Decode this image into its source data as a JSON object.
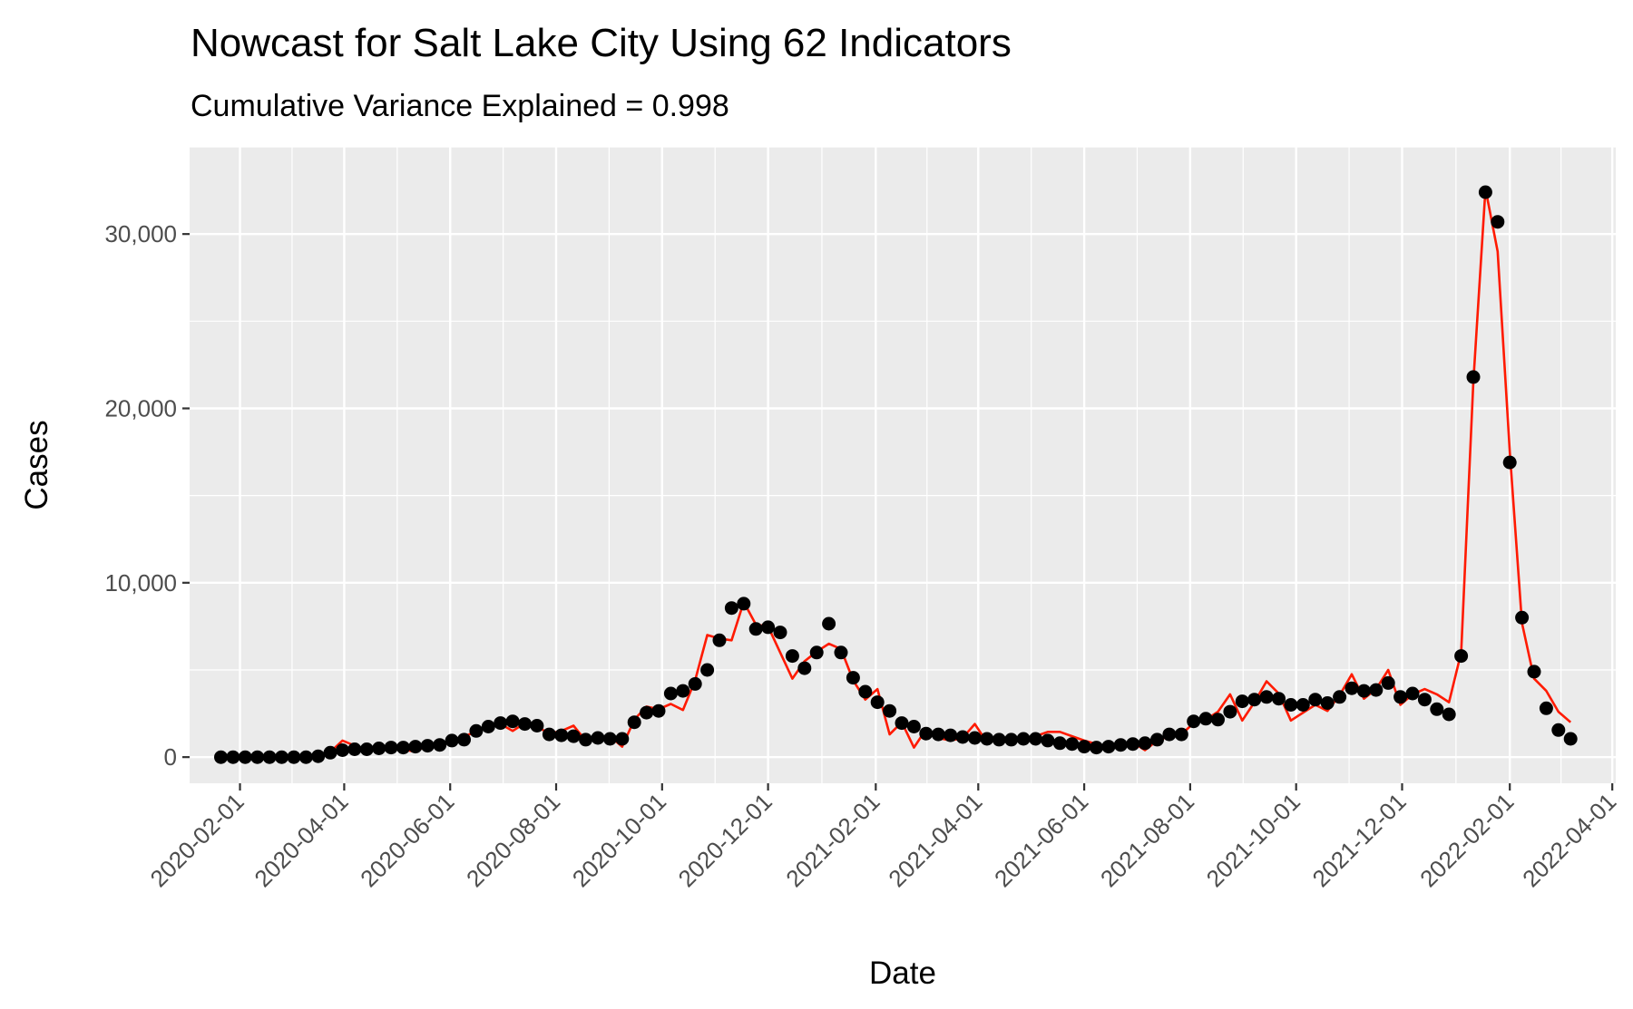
{
  "chart_data": {
    "type": "line",
    "title": "Nowcast for Salt Lake City Using 62 Indicators",
    "subtitle": "Cumulative Variance Explained = 0.998",
    "xlabel": "Date",
    "ylabel": "Cases",
    "ylim": [
      -1500,
      35000
    ],
    "xlim": [
      "2020-01-03",
      "2022-04-03"
    ],
    "x_tick_labels": [
      "2020-02-01",
      "2020-04-01",
      "2020-06-01",
      "2020-08-01",
      "2020-10-01",
      "2020-12-01",
      "2021-02-01",
      "2021-04-01",
      "2021-06-01",
      "2021-08-01",
      "2021-10-01",
      "2021-12-01",
      "2022-02-01",
      "2022-04-01"
    ],
    "y_ticks": [
      0,
      10000,
      20000,
      30000
    ],
    "y_tick_labels": [
      "0",
      "10,000",
      "20,000",
      "30,000"
    ],
    "grid": true,
    "legend": "none",
    "colors": {
      "panel": "#ebebeb",
      "grid": "#ffffff",
      "line": "#ff1a00",
      "points": "#000000",
      "text": "#000000",
      "ticks": "#4d4d4d"
    },
    "series": [
      {
        "role": "observed",
        "mark": "point",
        "points": [
          [
            "2020-01-21",
            0
          ],
          [
            "2020-01-28",
            0
          ],
          [
            "2020-02-04",
            0
          ],
          [
            "2020-02-11",
            0
          ],
          [
            "2020-02-18",
            0
          ],
          [
            "2020-02-25",
            0
          ],
          [
            "2020-03-03",
            0
          ],
          [
            "2020-03-10",
            0
          ],
          [
            "2020-03-17",
            50
          ],
          [
            "2020-03-24",
            250
          ],
          [
            "2020-03-31",
            400
          ],
          [
            "2020-04-07",
            450
          ],
          [
            "2020-04-14",
            450
          ],
          [
            "2020-04-21",
            500
          ],
          [
            "2020-04-28",
            550
          ],
          [
            "2020-05-05",
            550
          ],
          [
            "2020-05-12",
            600
          ],
          [
            "2020-05-19",
            650
          ],
          [
            "2020-05-26",
            700
          ],
          [
            "2020-06-02",
            950
          ],
          [
            "2020-06-09",
            1000
          ],
          [
            "2020-06-16",
            1500
          ],
          [
            "2020-06-23",
            1750
          ],
          [
            "2020-06-30",
            1950
          ],
          [
            "2020-07-07",
            2050
          ],
          [
            "2020-07-14",
            1900
          ],
          [
            "2020-07-21",
            1800
          ],
          [
            "2020-07-28",
            1300
          ],
          [
            "2020-08-04",
            1250
          ],
          [
            "2020-08-11",
            1200
          ],
          [
            "2020-08-18",
            1000
          ],
          [
            "2020-08-25",
            1100
          ],
          [
            "2020-09-01",
            1050
          ],
          [
            "2020-09-08",
            1050
          ],
          [
            "2020-09-15",
            2000
          ],
          [
            "2020-09-22",
            2550
          ],
          [
            "2020-09-29",
            2650
          ],
          [
            "2020-10-06",
            3650
          ],
          [
            "2020-10-13",
            3800
          ],
          [
            "2020-10-20",
            4200
          ],
          [
            "2020-10-27",
            5000
          ],
          [
            "2020-11-03",
            6700
          ],
          [
            "2020-11-10",
            8550
          ],
          [
            "2020-11-17",
            8800
          ],
          [
            "2020-11-24",
            7350
          ],
          [
            "2020-12-01",
            7450
          ],
          [
            "2020-12-08",
            7150
          ],
          [
            "2020-12-15",
            5800
          ],
          [
            "2020-12-22",
            5100
          ],
          [
            "2020-12-29",
            6000
          ],
          [
            "2021-01-05",
            7650
          ],
          [
            "2021-01-12",
            6000
          ],
          [
            "2021-01-19",
            4550
          ],
          [
            "2021-01-26",
            3750
          ],
          [
            "2021-02-02",
            3150
          ],
          [
            "2021-02-09",
            2650
          ],
          [
            "2021-02-16",
            1950
          ],
          [
            "2021-02-23",
            1750
          ],
          [
            "2021-03-02",
            1350
          ],
          [
            "2021-03-09",
            1300
          ],
          [
            "2021-03-16",
            1250
          ],
          [
            "2021-03-23",
            1150
          ],
          [
            "2021-03-30",
            1100
          ],
          [
            "2021-04-06",
            1050
          ],
          [
            "2021-04-13",
            1000
          ],
          [
            "2021-04-20",
            1000
          ],
          [
            "2021-04-27",
            1050
          ],
          [
            "2021-05-04",
            1050
          ],
          [
            "2021-05-11",
            950
          ],
          [
            "2021-05-18",
            800
          ],
          [
            "2021-05-25",
            750
          ],
          [
            "2021-06-01",
            600
          ],
          [
            "2021-06-08",
            550
          ],
          [
            "2021-06-15",
            600
          ],
          [
            "2021-06-22",
            700
          ],
          [
            "2021-06-29",
            750
          ],
          [
            "2021-07-06",
            800
          ],
          [
            "2021-07-13",
            1000
          ],
          [
            "2021-07-20",
            1300
          ],
          [
            "2021-07-27",
            1300
          ],
          [
            "2021-08-03",
            2050
          ],
          [
            "2021-08-10",
            2200
          ],
          [
            "2021-08-17",
            2150
          ],
          [
            "2021-08-24",
            2600
          ],
          [
            "2021-08-31",
            3200
          ],
          [
            "2021-09-07",
            3300
          ],
          [
            "2021-09-14",
            3450
          ],
          [
            "2021-09-21",
            3350
          ],
          [
            "2021-09-28",
            3000
          ],
          [
            "2021-10-05",
            3000
          ],
          [
            "2021-10-12",
            3300
          ],
          [
            "2021-10-19",
            3100
          ],
          [
            "2021-10-26",
            3450
          ],
          [
            "2021-11-02",
            3950
          ],
          [
            "2021-11-09",
            3800
          ],
          [
            "2021-11-16",
            3850
          ],
          [
            "2021-11-23",
            4250
          ],
          [
            "2021-11-30",
            3450
          ],
          [
            "2021-12-07",
            3650
          ],
          [
            "2021-12-14",
            3300
          ],
          [
            "2021-12-21",
            2750
          ],
          [
            "2021-12-28",
            2450
          ],
          [
            "2022-01-04",
            5800
          ],
          [
            "2022-01-11",
            21800
          ],
          [
            "2022-01-18",
            32400
          ],
          [
            "2022-01-25",
            30700
          ],
          [
            "2022-02-01",
            16900
          ],
          [
            "2022-02-08",
            8000
          ],
          [
            "2022-02-15",
            4900
          ],
          [
            "2022-02-22",
            2800
          ],
          [
            "2022-03-01",
            1550
          ],
          [
            "2022-03-08",
            1050
          ]
        ]
      },
      {
        "role": "nowcast",
        "mark": "line",
        "points": [
          [
            "2020-01-21",
            0
          ],
          [
            "2020-01-28",
            50
          ],
          [
            "2020-02-04",
            0
          ],
          [
            "2020-02-11",
            0
          ],
          [
            "2020-02-18",
            0
          ],
          [
            "2020-02-25",
            50
          ],
          [
            "2020-03-03",
            0
          ],
          [
            "2020-03-10",
            50
          ],
          [
            "2020-03-17",
            100
          ],
          [
            "2020-03-24",
            300
          ],
          [
            "2020-03-31",
            950
          ],
          [
            "2020-04-07",
            650
          ],
          [
            "2020-04-14",
            400
          ],
          [
            "2020-04-21",
            550
          ],
          [
            "2020-04-28",
            600
          ],
          [
            "2020-05-05",
            450
          ],
          [
            "2020-05-12",
            300
          ],
          [
            "2020-05-19",
            700
          ],
          [
            "2020-05-26",
            650
          ],
          [
            "2020-06-02",
            900
          ],
          [
            "2020-06-09",
            1200
          ],
          [
            "2020-06-16",
            1450
          ],
          [
            "2020-06-23",
            1800
          ],
          [
            "2020-06-30",
            1900
          ],
          [
            "2020-07-07",
            1500
          ],
          [
            "2020-07-14",
            1950
          ],
          [
            "2020-07-21",
            1750
          ],
          [
            "2020-07-28",
            1350
          ],
          [
            "2020-08-04",
            1500
          ],
          [
            "2020-08-11",
            1800
          ],
          [
            "2020-08-18",
            950
          ],
          [
            "2020-08-25",
            1100
          ],
          [
            "2020-09-01",
            1200
          ],
          [
            "2020-09-08",
            600
          ],
          [
            "2020-09-15",
            2150
          ],
          [
            "2020-09-22",
            2900
          ],
          [
            "2020-09-29",
            2750
          ],
          [
            "2020-10-06",
            3050
          ],
          [
            "2020-10-13",
            2700
          ],
          [
            "2020-10-20",
            4400
          ],
          [
            "2020-10-27",
            7000
          ],
          [
            "2020-11-03",
            6800
          ],
          [
            "2020-11-10",
            6700
          ],
          [
            "2020-11-17",
            8900
          ],
          [
            "2020-11-24",
            7600
          ],
          [
            "2020-12-01",
            7500
          ],
          [
            "2020-12-08",
            6000
          ],
          [
            "2020-12-15",
            4500
          ],
          [
            "2020-12-22",
            5500
          ],
          [
            "2020-12-29",
            6050
          ],
          [
            "2021-01-05",
            6500
          ],
          [
            "2021-01-12",
            6200
          ],
          [
            "2021-01-19",
            4400
          ],
          [
            "2021-01-26",
            3300
          ],
          [
            "2021-02-02",
            3900
          ],
          [
            "2021-02-09",
            1300
          ],
          [
            "2021-02-16",
            2000
          ],
          [
            "2021-02-23",
            550
          ],
          [
            "2021-03-02",
            1600
          ],
          [
            "2021-03-09",
            1100
          ],
          [
            "2021-03-16",
            950
          ],
          [
            "2021-03-23",
            1100
          ],
          [
            "2021-03-30",
            1900
          ],
          [
            "2021-04-06",
            850
          ],
          [
            "2021-04-13",
            1000
          ],
          [
            "2021-04-20",
            1100
          ],
          [
            "2021-04-27",
            1000
          ],
          [
            "2021-05-04",
            1200
          ],
          [
            "2021-05-11",
            1450
          ],
          [
            "2021-05-18",
            1450
          ],
          [
            "2021-05-25",
            1200
          ],
          [
            "2021-06-01",
            950
          ],
          [
            "2021-06-08",
            750
          ],
          [
            "2021-06-15",
            600
          ],
          [
            "2021-06-22",
            800
          ],
          [
            "2021-06-29",
            850
          ],
          [
            "2021-07-06",
            400
          ],
          [
            "2021-07-13",
            950
          ],
          [
            "2021-07-20",
            1200
          ],
          [
            "2021-07-27",
            1300
          ],
          [
            "2021-08-03",
            1950
          ],
          [
            "2021-08-10",
            2150
          ],
          [
            "2021-08-17",
            2600
          ],
          [
            "2021-08-24",
            3600
          ],
          [
            "2021-08-31",
            2100
          ],
          [
            "2021-09-07",
            3150
          ],
          [
            "2021-09-14",
            4350
          ],
          [
            "2021-09-21",
            3650
          ],
          [
            "2021-09-28",
            2100
          ],
          [
            "2021-10-05",
            2550
          ],
          [
            "2021-10-12",
            3000
          ],
          [
            "2021-10-19",
            2650
          ],
          [
            "2021-10-26",
            3550
          ],
          [
            "2021-11-02",
            4750
          ],
          [
            "2021-11-09",
            3350
          ],
          [
            "2021-11-16",
            3900
          ],
          [
            "2021-11-23",
            5000
          ],
          [
            "2021-11-30",
            3000
          ],
          [
            "2021-12-07",
            3600
          ],
          [
            "2021-12-14",
            3900
          ],
          [
            "2021-12-21",
            3600
          ],
          [
            "2021-12-28",
            3150
          ],
          [
            "2022-01-04",
            6000
          ],
          [
            "2022-01-11",
            21500
          ],
          [
            "2022-01-18",
            32600
          ],
          [
            "2022-01-25",
            29000
          ],
          [
            "2022-02-01",
            17500
          ],
          [
            "2022-02-08",
            7700
          ],
          [
            "2022-02-15",
            4500
          ],
          [
            "2022-02-22",
            3800
          ],
          [
            "2022-03-01",
            2600
          ],
          [
            "2022-03-08",
            2000
          ]
        ]
      }
    ]
  }
}
